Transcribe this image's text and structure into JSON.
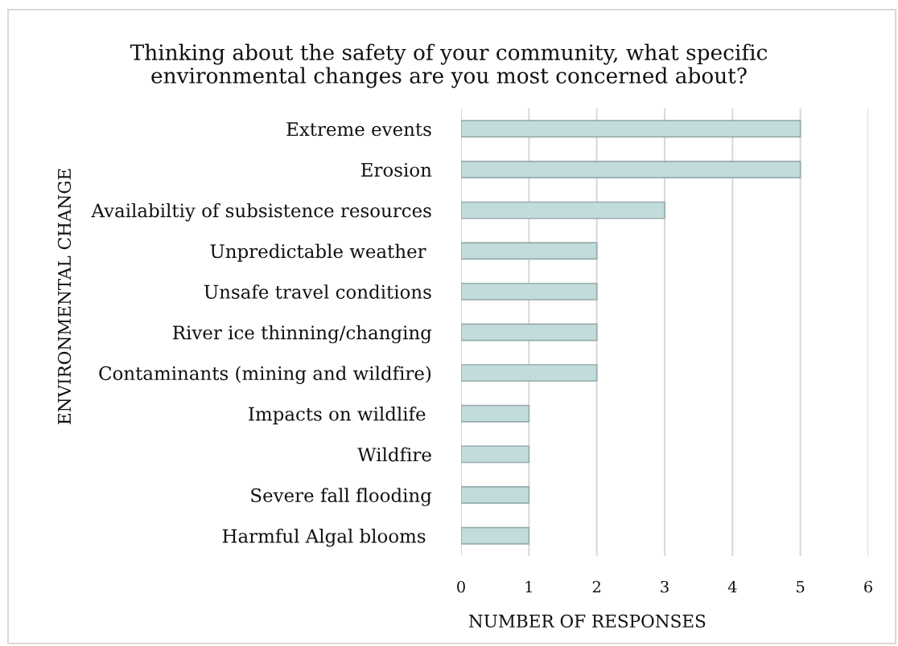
{
  "chart_data": {
    "type": "bar",
    "orientation": "horizontal",
    "title": "Thinking about the safety of your community, what specific\nenvironmental changes are you most concerned about?",
    "xlabel": "NUMBER OF RESPONSES",
    "ylabel": "ENVIRONMENTAL CHANGE",
    "categories": [
      "Extreme events",
      "Erosion",
      "Availabiltiy of subsistence resources",
      "Unpredictable weather ",
      "Unsafe travel conditions",
      "River ice thinning/changing",
      "Contaminants (mining and wildfire)",
      "Impacts on wildlife ",
      "Wildfire",
      "Severe fall flooding",
      "Harmful Algal blooms "
    ],
    "values": [
      5,
      5,
      3,
      2,
      2,
      2,
      2,
      1,
      1,
      1,
      1
    ],
    "color": "#c2dcdc",
    "xlim": [
      0,
      6
    ],
    "xticks": [
      0,
      1,
      2,
      3,
      4,
      5,
      6
    ],
    "grid": "x"
  }
}
